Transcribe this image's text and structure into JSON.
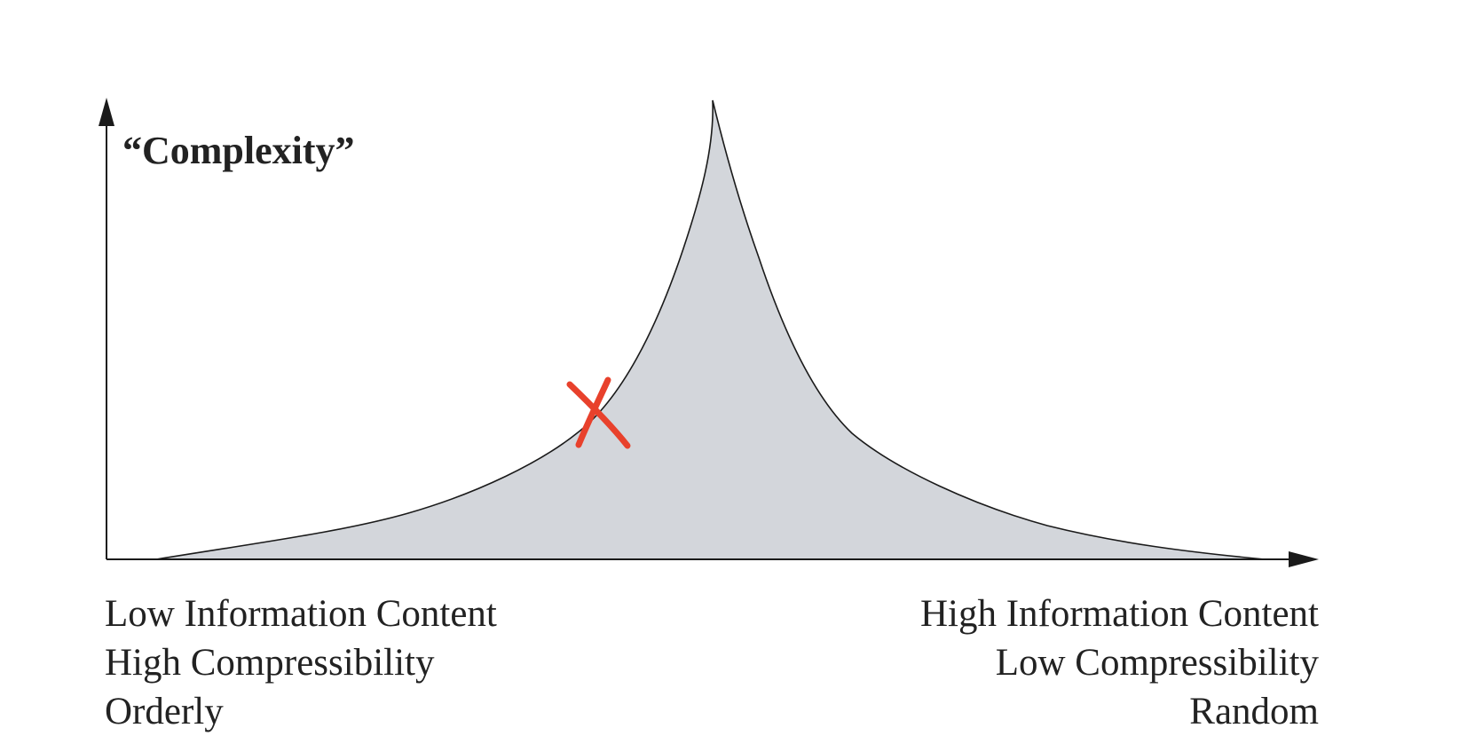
{
  "diagram": {
    "y_title": "“Complexity”",
    "left_labels": [
      "Low Information Content",
      "High Compressibility",
      "Orderly"
    ],
    "right_labels": [
      "High Information Content",
      "Low Compressibility",
      "Random"
    ],
    "colors": {
      "area_fill": "#d3d6db",
      "outline": "#1a1a1a",
      "marker": "#e8412c"
    },
    "marker_icon": "x-mark"
  }
}
